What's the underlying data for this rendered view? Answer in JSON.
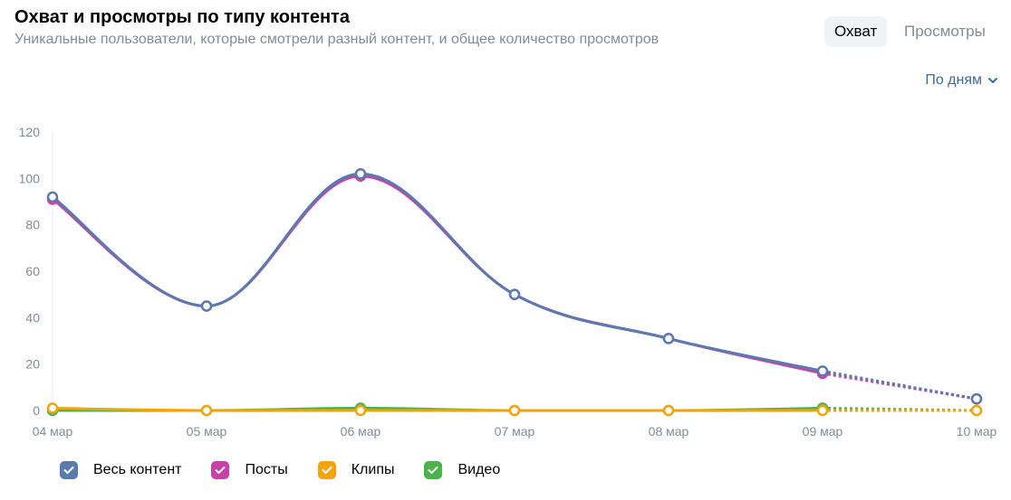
{
  "header": {
    "title": "Охват и просмотры по типу контента",
    "subtitle": "Уникальные пользователи, которые смотрели разный контент, и общее количество просмотров"
  },
  "toggle": {
    "active_label": "Охват",
    "inactive_label": "Просмотры"
  },
  "period": {
    "label": "По дням",
    "icon": "chevron-down-icon"
  },
  "colors": {
    "accent": "#3f6b9f",
    "grid": "#e7e8ec",
    "muted": "#818c99"
  },
  "chart_data": {
    "type": "line",
    "categories": [
      "04 мар",
      "05 мар",
      "06 мар",
      "07 мар",
      "08 мар",
      "09 мар",
      "10 мар"
    ],
    "ylim": [
      0,
      120
    ],
    "yticks": [
      0,
      20,
      40,
      60,
      80,
      100,
      120
    ],
    "grid": false,
    "smooth": true,
    "last_segment_dotted": true,
    "legend_position": "bottom-left",
    "series": [
      {
        "name": "Весь контент",
        "color": "#5b7aae",
        "values": [
          92,
          45,
          102,
          50,
          31,
          17,
          5
        ]
      },
      {
        "name": "Посты",
        "color": "#c841a8",
        "values": [
          91,
          45,
          101,
          50,
          31,
          16,
          5
        ]
      },
      {
        "name": "Клипы",
        "color": "#f5a30a",
        "values": [
          1,
          0,
          0,
          0,
          0,
          0,
          0
        ]
      },
      {
        "name": "Видео",
        "color": "#4bb34b",
        "values": [
          0,
          0,
          1,
          0,
          0,
          1,
          0
        ]
      }
    ]
  }
}
